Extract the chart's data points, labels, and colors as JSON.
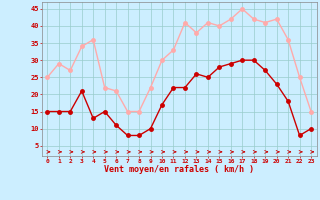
{
  "x": [
    0,
    1,
    2,
    3,
    4,
    5,
    6,
    7,
    8,
    9,
    10,
    11,
    12,
    13,
    14,
    15,
    16,
    17,
    18,
    19,
    20,
    21,
    22,
    23
  ],
  "mean_wind": [
    15,
    15,
    15,
    21,
    13,
    15,
    11,
    8,
    8,
    10,
    17,
    22,
    22,
    26,
    25,
    28,
    29,
    30,
    30,
    27,
    23,
    18,
    8,
    10
  ],
  "gusts": [
    25,
    29,
    27,
    34,
    36,
    22,
    21,
    15,
    15,
    22,
    30,
    33,
    41,
    38,
    41,
    40,
    42,
    45,
    42,
    41,
    42,
    36,
    25,
    15
  ],
  "mean_color": "#cc0000",
  "gusts_color": "#ffaaaa",
  "bg_color": "#cceeff",
  "grid_color": "#99cccc",
  "xlabel": "Vent moyen/en rafales ( km/h )",
  "xlabel_color": "#cc0000",
  "yticks": [
    5,
    10,
    15,
    20,
    25,
    30,
    35,
    40,
    45
  ],
  "xticks": [
    0,
    1,
    2,
    3,
    4,
    5,
    6,
    7,
    8,
    9,
    10,
    11,
    12,
    13,
    14,
    15,
    16,
    17,
    18,
    19,
    20,
    21,
    22,
    23
  ],
  "ylim": [
    2,
    47
  ],
  "xlim": [
    -0.5,
    23.5
  ],
  "marker_size": 2.5,
  "linewidth": 1.0
}
